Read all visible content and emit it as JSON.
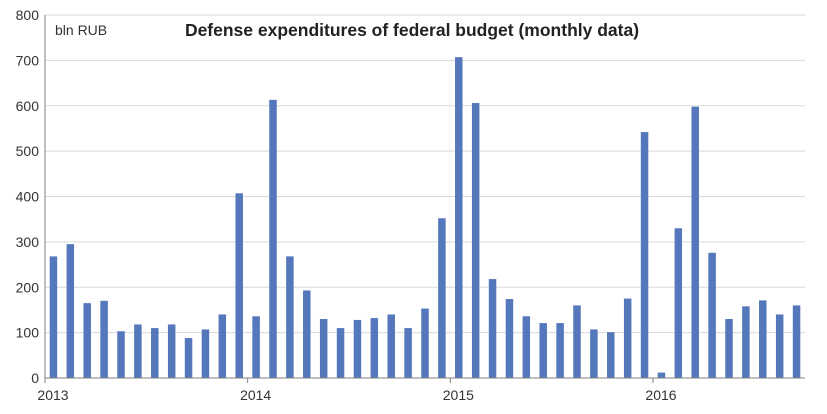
{
  "chart_data": {
    "type": "bar",
    "title": "Defense expenditures of federal budget (monthly data)",
    "unit_label": "bln RUB",
    "xlabel": "",
    "ylabel": "",
    "ylim": [
      0,
      800
    ],
    "yticks": [
      0,
      100,
      200,
      300,
      400,
      500,
      600,
      700,
      800
    ],
    "year_labels": [
      {
        "label": "2013",
        "index": 0
      },
      {
        "label": "2014",
        "index": 12
      },
      {
        "label": "2015",
        "index": 24
      },
      {
        "label": "2016",
        "index": 36
      }
    ],
    "grid": true,
    "legend": "none",
    "bar_color": "#5577BB",
    "categories": [
      "2013-01",
      "2013-02",
      "2013-03",
      "2013-04",
      "2013-05",
      "2013-06",
      "2013-07",
      "2013-08",
      "2013-09",
      "2013-10",
      "2013-11",
      "2013-12",
      "2014-01",
      "2014-02",
      "2014-03",
      "2014-04",
      "2014-05",
      "2014-06",
      "2014-07",
      "2014-08",
      "2014-09",
      "2014-10",
      "2014-11",
      "2014-12",
      "2015-01",
      "2015-02",
      "2015-03",
      "2015-04",
      "2015-05",
      "2015-06",
      "2015-07",
      "2015-08",
      "2015-09",
      "2015-10",
      "2015-11",
      "2015-12",
      "2016-01",
      "2016-02",
      "2016-03",
      "2016-04",
      "2016-05",
      "2016-06",
      "2016-07",
      "2016-08",
      "2016-09"
    ],
    "values": [
      268,
      295,
      165,
      170,
      103,
      118,
      110,
      118,
      88,
      107,
      140,
      407,
      136,
      613,
      268,
      193,
      130,
      110,
      128,
      132,
      140,
      110,
      153,
      352,
      707,
      606,
      218,
      174,
      136,
      121,
      121,
      160,
      107,
      101,
      175,
      542,
      12,
      330,
      598,
      276,
      130,
      158,
      171,
      140,
      160
    ]
  }
}
